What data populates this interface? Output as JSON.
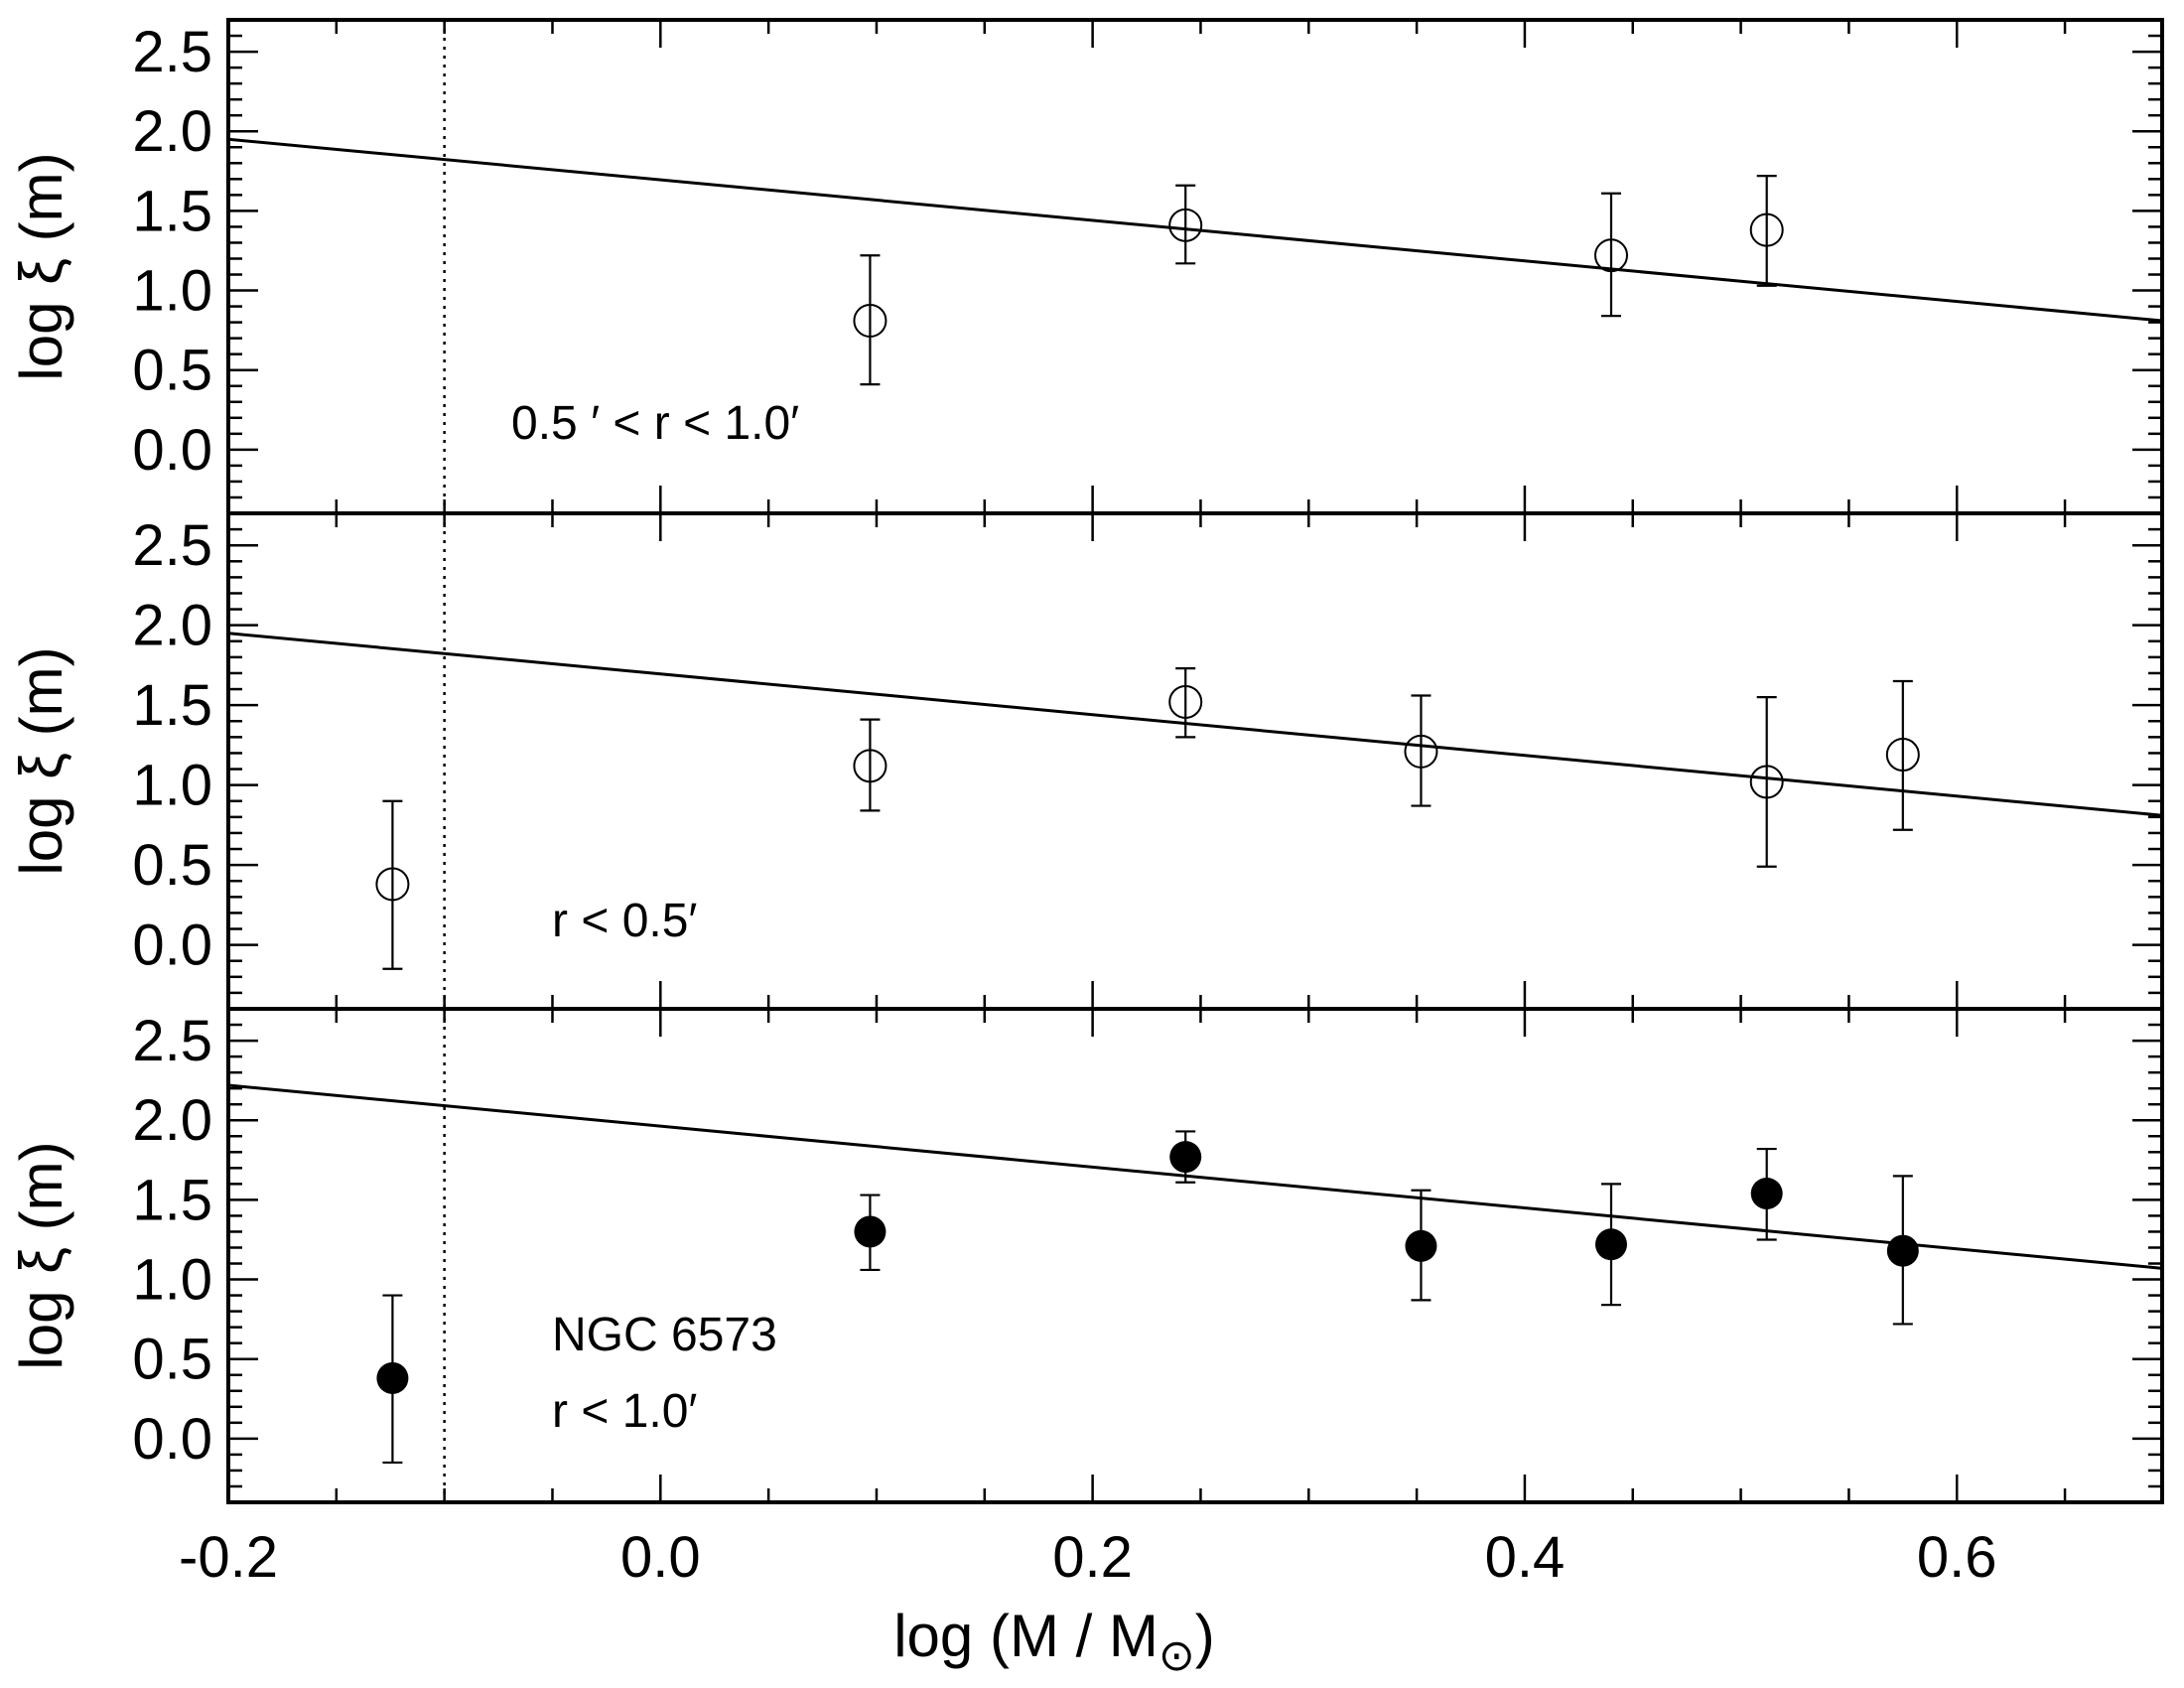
{
  "chart_data": {
    "type": "scatter",
    "layout": "three vertically stacked panels sharing the x axis",
    "xlabel": "log (M / M",
    "xlabel_subscript": "⊙",
    "xlabel_close": ")",
    "ylabel": "log ξ (m)",
    "xlim": [
      -0.2,
      0.695
    ],
    "ylim": [
      -0.4,
      2.7
    ],
    "x_ticks": [
      -0.2,
      0.0,
      0.2,
      0.4,
      0.6
    ],
    "x_tick_labels": [
      "-0.2",
      "0.0",
      "0.2",
      "0.4",
      "0.6"
    ],
    "y_ticks": [
      0.0,
      0.5,
      1.0,
      1.5,
      2.0,
      2.5
    ],
    "y_tick_labels": [
      "0.0",
      "0.5",
      "1.0",
      "1.5",
      "2.0",
      "2.5"
    ],
    "vline_x": -0.1,
    "vline_style": "dotted",
    "panels": [
      {
        "id": "top",
        "annotation_lines": [
          "0.5 ′ <  r  <  1.0′"
        ],
        "marker": "open-circle",
        "fit_line": {
          "x": [
            -0.2,
            0.695
          ],
          "y": [
            1.95,
            0.81
          ]
        },
        "points": [
          {
            "x": 0.097,
            "y": 0.81,
            "err_lo": 0.41,
            "err_hi": 1.22
          },
          {
            "x": 0.243,
            "y": 1.41,
            "err_lo": 1.17,
            "err_hi": 1.66
          },
          {
            "x": 0.44,
            "y": 1.22,
            "err_lo": 0.84,
            "err_hi": 1.61
          },
          {
            "x": 0.512,
            "y": 1.38,
            "err_lo": 1.03,
            "err_hi": 1.72
          }
        ]
      },
      {
        "id": "middle",
        "annotation_lines": [
          "r  <  0.5′"
        ],
        "marker": "open-circle",
        "fit_line": {
          "x": [
            -0.2,
            0.695
          ],
          "y": [
            1.95,
            0.81
          ]
        },
        "points": [
          {
            "x": -0.124,
            "y": 0.38,
            "err_lo": -0.15,
            "err_hi": 0.9
          },
          {
            "x": 0.097,
            "y": 1.12,
            "err_lo": 0.84,
            "err_hi": 1.41
          },
          {
            "x": 0.243,
            "y": 1.52,
            "err_lo": 1.3,
            "err_hi": 1.73
          },
          {
            "x": 0.352,
            "y": 1.21,
            "err_lo": 0.87,
            "err_hi": 1.56
          },
          {
            "x": 0.512,
            "y": 1.02,
            "err_lo": 0.49,
            "err_hi": 1.55
          },
          {
            "x": 0.575,
            "y": 1.19,
            "err_lo": 0.72,
            "err_hi": 1.65
          }
        ]
      },
      {
        "id": "bottom",
        "annotation_lines": [
          "NGC 6573",
          "r  <  1.0′"
        ],
        "marker": "filled-circle",
        "fit_line": {
          "x": [
            -0.2,
            0.695
          ],
          "y": [
            2.22,
            1.07
          ]
        },
        "points": [
          {
            "x": -0.124,
            "y": 0.38,
            "err_lo": -0.15,
            "err_hi": 0.9
          },
          {
            "x": 0.097,
            "y": 1.3,
            "err_lo": 1.06,
            "err_hi": 1.53
          },
          {
            "x": 0.243,
            "y": 1.77,
            "err_lo": 1.61,
            "err_hi": 1.93
          },
          {
            "x": 0.352,
            "y": 1.21,
            "err_lo": 0.87,
            "err_hi": 1.56
          },
          {
            "x": 0.44,
            "y": 1.22,
            "err_lo": 0.84,
            "err_hi": 1.6
          },
          {
            "x": 0.512,
            "y": 1.54,
            "err_lo": 1.25,
            "err_hi": 1.82
          },
          {
            "x": 0.575,
            "y": 1.18,
            "err_lo": 0.72,
            "err_hi": 1.65
          }
        ]
      }
    ]
  }
}
